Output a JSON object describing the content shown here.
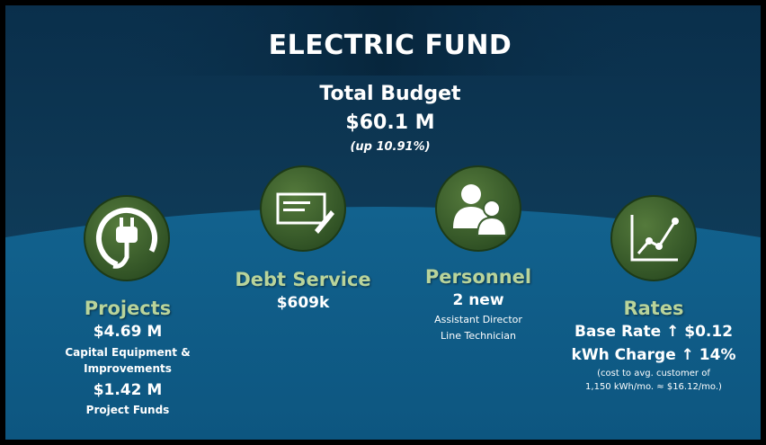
{
  "title": "ELECTRIC FUND",
  "budget": {
    "label": "Total Budget",
    "amount": "$60.1 M",
    "change": "(up 10.91%)"
  },
  "items": [
    {
      "title": "Projects",
      "lines": [
        "$4.69 M",
        "Capital Equipment &",
        "Improvements",
        "$1.42 M",
        "Project Funds"
      ]
    },
    {
      "title": "Debt Service",
      "lines": [
        "$609k"
      ]
    },
    {
      "title": "Personnel",
      "lines": [
        "2 new",
        "Assistant Director",
        "Line Technician"
      ]
    },
    {
      "title": "Rates",
      "lines": [
        "Base Rate ↑ $0.12",
        "kWh Charge ↑ 14%",
        "(cost to avg. customer of",
        "1,150 kWh/mo. ≈ $16.12/mo.)"
      ]
    }
  ]
}
